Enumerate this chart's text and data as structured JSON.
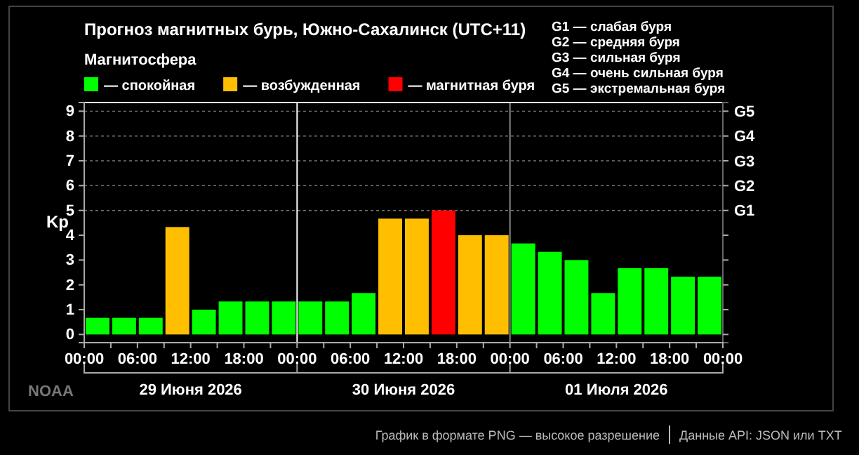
{
  "chart_data": {
    "type": "bar",
    "title": "Прогноз магнитных бурь, Южно-Сахалинск (UTC+11)",
    "legend_title": "Магнитосфера",
    "ylabel": "Kp",
    "legend": "top left",
    "x": [
      "2026-06-29T01:30",
      "2026-06-29T04:30",
      "2026-06-29T07:30",
      "2026-06-29T10:30",
      "2026-06-29T13:30",
      "2026-06-29T16:30",
      "2026-06-29T19:30",
      "2026-06-29T22:30",
      "2026-06-30T01:30",
      "2026-06-30T04:30",
      "2026-06-30T07:30",
      "2026-06-30T10:30",
      "2026-06-30T13:30",
      "2026-06-30T16:30",
      "2026-06-30T19:30",
      "2026-06-30T22:30",
      "2026-07-01T01:30",
      "2026-07-01T04:30",
      "2026-07-01T07:30",
      "2026-07-01T10:30",
      "2026-07-01T13:30",
      "2026-07-01T16:30",
      "2026-07-01T19:30",
      "2026-07-01T22:30"
    ],
    "series": [
      {
        "name": "— спокойная",
        "color": "#00ff00",
        "values": [
          0.67,
          0.67,
          0.67,
          null,
          1,
          1.33,
          1.33,
          1.33,
          1.33,
          1.33,
          1.67,
          null,
          null,
          null,
          null,
          null,
          3.67,
          3.33,
          3,
          1.67,
          2.67,
          2.67,
          2.33,
          2.33
        ]
      },
      {
        "name": "— возбужденная",
        "color": "#ffbf00",
        "values": [
          null,
          null,
          null,
          4.33,
          null,
          null,
          null,
          null,
          null,
          null,
          null,
          4.67,
          4.67,
          null,
          4,
          4,
          null,
          null,
          null,
          null,
          null,
          null,
          null,
          null
        ]
      },
      {
        "name": "— магнитная буря",
        "color": "#ff0000",
        "values": [
          null,
          null,
          null,
          null,
          null,
          null,
          null,
          null,
          null,
          null,
          null,
          null,
          null,
          5,
          null,
          null,
          null,
          null,
          null,
          null,
          null,
          null,
          null,
          null
        ]
      }
    ],
    "xlim": [
      "2026-06-29T00:00",
      "2026-07-02T00:00"
    ],
    "xticks": [
      {
        "value": "2026-06-29T00:00",
        "label": "00:00"
      },
      {
        "value": "2026-06-29T03:00",
        "label": null
      },
      {
        "value": "2026-06-29T06:00",
        "label": "06:00"
      },
      {
        "value": "2026-06-29T09:00",
        "label": null
      },
      {
        "value": "2026-06-29T12:00",
        "label": "12:00"
      },
      {
        "value": "2026-06-29T15:00",
        "label": null
      },
      {
        "value": "2026-06-29T18:00",
        "label": "18:00"
      },
      {
        "value": "2026-06-29T21:00",
        "label": null
      },
      {
        "value": "2026-06-30T00:00",
        "label": "00:00"
      },
      {
        "value": "2026-06-30T03:00",
        "label": null
      },
      {
        "value": "2026-06-30T06:00",
        "label": "06:00"
      },
      {
        "value": "2026-06-30T09:00",
        "label": null
      },
      {
        "value": "2026-06-30T12:00",
        "label": "12:00"
      },
      {
        "value": "2026-06-30T15:00",
        "label": null
      },
      {
        "value": "2026-06-30T18:00",
        "label": "18:00"
      },
      {
        "value": "2026-06-30T21:00",
        "label": null
      },
      {
        "value": "2026-07-01T00:00",
        "label": "00:00"
      },
      {
        "value": "2026-07-01T03:00",
        "label": null
      },
      {
        "value": "2026-07-01T06:00",
        "label": "06:00"
      },
      {
        "value": "2026-07-01T09:00",
        "label": null
      },
      {
        "value": "2026-07-01T12:00",
        "label": "12:00"
      },
      {
        "value": "2026-07-01T15:00",
        "label": null
      },
      {
        "value": "2026-07-01T18:00",
        "label": "18:00"
      },
      {
        "value": "2026-07-01T21:00",
        "label": null
      },
      {
        "value": "2026-07-02T00:00",
        "label": "00:00"
      }
    ],
    "ylim": [
      -0.33,
      9.35
    ],
    "yticks": [
      0,
      1,
      2,
      3,
      4,
      5,
      6,
      7,
      8,
      9
    ],
    "ref_lines": [
      {
        "axis": "x",
        "value": "2026-06-30T00:00",
        "color": "#ffffff"
      },
      {
        "axis": "x",
        "value": "2026-07-01T00:00",
        "color": "#888888"
      },
      {
        "axis": "y",
        "value": 5,
        "label": "G1",
        "line_style": "dashed"
      },
      {
        "axis": "y",
        "value": 6,
        "label": "G2",
        "line_style": "dashed"
      },
      {
        "axis": "y",
        "value": 7,
        "label": "G3",
        "line_style": "dashed"
      },
      {
        "axis": "y",
        "value": 8,
        "label": "G4",
        "line_style": "dashed"
      },
      {
        "axis": "y",
        "value": 9,
        "label": "G5",
        "line_style": "dashed"
      }
    ],
    "annotations": [
      "G1 — слабая буря",
      "G2 — средняя буря",
      "G3 — сильная буря",
      "G4 — очень сильная буря",
      "G5 — экстремальная буря",
      "NOAA",
      "График в формате PNG — высокое разрешение",
      "Данные API: JSON или TXT",
      "29 Июня 2026",
      "30 Июня 2026",
      "01 Июля 2026"
    ]
  }
}
